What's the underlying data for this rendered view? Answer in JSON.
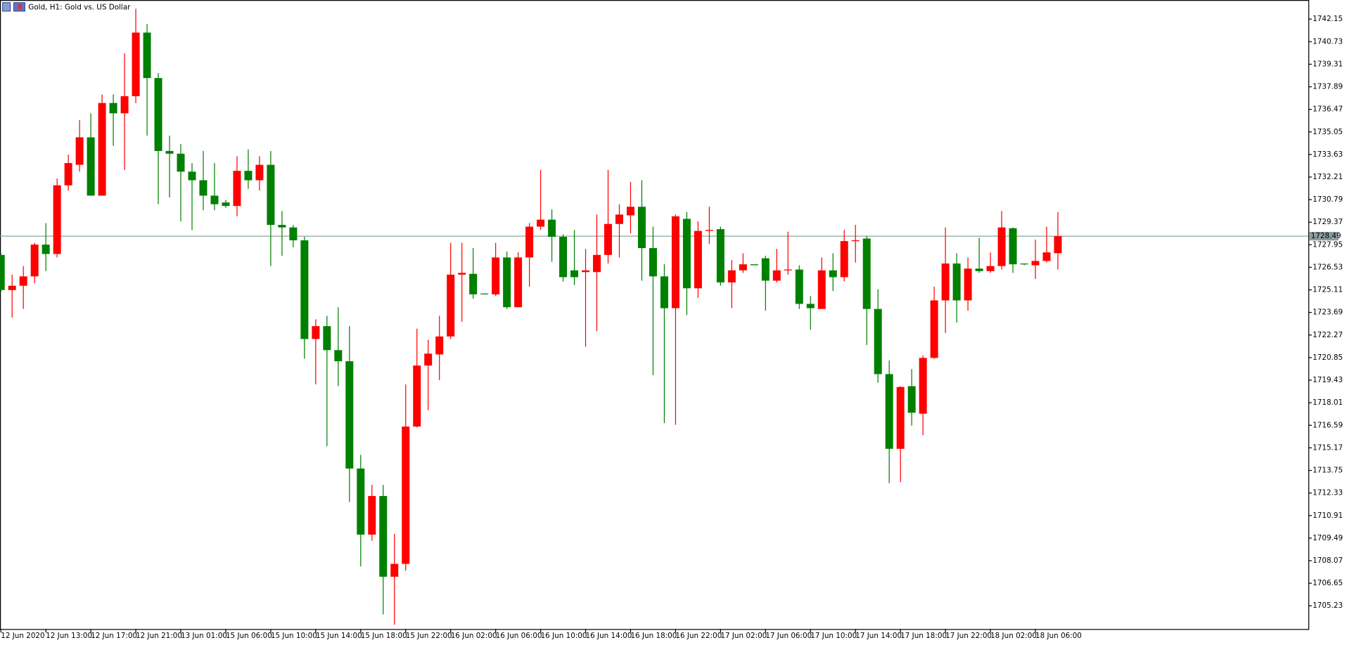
{
  "chart_data": {
    "type": "candlestick",
    "title": "Gold, H1:  Gold vs. US Dollar",
    "categories": [
      "12 Jun 2020",
      null,
      null,
      null,
      "12 Jun 13:00",
      null,
      null,
      null,
      "12 Jun 17:00",
      null,
      null,
      null,
      "12 Jun 21:00",
      null,
      null,
      null,
      "13 Jun 01:00",
      null,
      null,
      null,
      "15 Jun 06:00",
      null,
      null,
      null,
      "15 Jun 10:00",
      null,
      null,
      null,
      "15 Jun 14:00",
      null,
      null,
      null,
      "15 Jun 18:00",
      null,
      null,
      null,
      "15 Jun 22:00",
      null,
      null,
      null,
      "16 Jun 02:00",
      null,
      null,
      null,
      "16 Jun 06:00",
      null,
      null,
      null,
      "16 Jun 10:00",
      null,
      null,
      null,
      "16 Jun 14:00",
      null,
      null,
      null,
      "16 Jun 18:00",
      null,
      null,
      null,
      "16 Jun 22:00",
      null,
      null,
      null,
      "17 Jun 02:00",
      null,
      null,
      null,
      "17 Jun 06:00",
      null,
      null,
      null,
      "17 Jun 10:00",
      null,
      null,
      null,
      "17 Jun 14:00",
      null,
      null,
      null,
      "17 Jun 18:00",
      null,
      null,
      null,
      "17 Jun 22:00",
      null,
      null,
      null,
      "18 Jun 02:00",
      null,
      null,
      null,
      "18 Jun 06:00",
      null,
      null
    ],
    "open": [
      1727.31,
      1725.1,
      1725.37,
      1725.96,
      1727.96,
      1727.37,
      1731.69,
      1732.98,
      1734.71,
      1731.04,
      1736.87,
      1736.22,
      1737.3,
      1741.3,
      1738.44,
      1733.85,
      1733.68,
      1732.55,
      1732.01,
      1731.04,
      1730.61,
      1730.39,
      1732.6,
      1732.01,
      1732.98,
      1729.2,
      1729.04,
      1728.23,
      1722.02,
      1722.83,
      1721.32,
      1720.62,
      1713.87,
      1709.71,
      1712.14,
      1707.06,
      1707.87,
      1716.51,
      1720.35,
      1721.05,
      1722.18,
      1726.07,
      1726.12,
      1724.88,
      1724.83,
      1727.15,
      1724.02,
      1727.15,
      1729.09,
      1729.53,
      1728.45,
      1726.34,
      1726.23,
      1726.23,
      1727.31,
      1729.26,
      1729.8,
      1730.34,
      1727.74,
      1725.96,
      1723.96,
      1729.58,
      1725.21,
      1728.82,
      1728.93,
      1725.58,
      1726.34,
      1726.72,
      1727.1,
      1725.69,
      1726.34,
      1726.39,
      1724.23,
      1723.91,
      1726.34,
      1725.91,
      1728.18,
      1728.34,
      1723.91,
      1719.81,
      1715.11,
      1719.05,
      1717.32,
      1720.83,
      1724.45,
      1726.77,
      1724.45,
      1726.45,
      1726.29,
      1726.61,
      1728.99,
      1726.77,
      1726.66,
      1726.93,
      1727.42
    ],
    "high": [
      1727.42,
      1726.07,
      1726.61,
      1728.07,
      1729.31,
      1732.12,
      1733.63,
      1735.79,
      1736.22,
      1737.41,
      1737.41,
      1740.0,
      1742.81,
      1741.84,
      1738.76,
      1734.82,
      1734.28,
      1733.09,
      1733.85,
      1733.09,
      1730.77,
      1733.52,
      1733.95,
      1733.52,
      1733.85,
      1730.07,
      1729.2,
      1728.45,
      1723.26,
      1723.48,
      1724.02,
      1722.83,
      1714.73,
      1712.84,
      1712.84,
      1709.76,
      1719.16,
      1722.67,
      1721.97,
      1723.48,
      1728.07,
      1728.07,
      1727.74,
      1724.88,
      1728.07,
      1727.53,
      1727.47,
      1729.31,
      1732.66,
      1730.17,
      1728.61,
      1728.88,
      1727.69,
      1729.85,
      1732.66,
      1730.5,
      1731.9,
      1732.01,
      1729.09,
      1726.72,
      1729.85,
      1730.01,
      1729.42,
      1730.34,
      1729.09,
      1726.99,
      1727.42,
      1726.72,
      1727.26,
      1727.69,
      1728.77,
      1726.66,
      1724.72,
      1727.15,
      1727.42,
      1728.88,
      1729.2,
      1728.5,
      1725.15,
      1720.67,
      1719.05,
      1720.13,
      1720.99,
      1725.31,
      1729.04,
      1727.42,
      1727.15,
      1728.39,
      1727.47,
      1730.07,
      1729.04,
      1726.77,
      1728.28,
      1729.09,
      1730.01
    ],
    "low": [
      1724.99,
      1723.37,
      1723.91,
      1725.53,
      1726.29,
      1727.15,
      1731.36,
      1732.55,
      1731.04,
      1731.04,
      1734.17,
      1732.66,
      1736.87,
      1734.82,
      1730.5,
      1730.93,
      1729.42,
      1728.88,
      1730.12,
      1730.12,
      1730.28,
      1729.74,
      1731.47,
      1731.36,
      1726.61,
      1727.26,
      1727.8,
      1720.78,
      1719.16,
      1715.27,
      1719.05,
      1711.76,
      1707.71,
      1709.33,
      1704.69,
      1704.04,
      1707.44,
      1716.46,
      1717.54,
      1719.43,
      1722.02,
      1723.1,
      1724.56,
      1724.83,
      1724.72,
      1723.91,
      1724.02,
      1725.31,
      1728.88,
      1726.88,
      1725.64,
      1725.42,
      1721.53,
      1722.51,
      1726.77,
      1727.15,
      1728.66,
      1725.69,
      1719.75,
      1716.73,
      1716.62,
      1723.53,
      1724.61,
      1728.01,
      1725.37,
      1723.96,
      1726.18,
      1726.66,
      1723.8,
      1725.58,
      1726.07,
      1723.91,
      1722.61,
      1723.91,
      1725.04,
      1725.64,
      1726.83,
      1721.64,
      1719.27,
      1712.95,
      1713.0,
      1716.57,
      1715.97,
      1720.78,
      1722.4,
      1723.05,
      1723.8,
      1726.18,
      1726.18,
      1726.39,
      1726.18,
      1726.66,
      1725.8,
      1726.83,
      1726.39
    ],
    "close": [
      1725.1,
      1725.37,
      1725.96,
      1727.96,
      1727.37,
      1731.69,
      1733.09,
      1734.71,
      1731.04,
      1736.87,
      1736.22,
      1737.3,
      1741.3,
      1738.44,
      1733.85,
      1733.68,
      1732.55,
      1732.01,
      1731.04,
      1730.5,
      1730.39,
      1732.6,
      1732.01,
      1732.98,
      1729.2,
      1729.04,
      1728.23,
      1722.02,
      1722.83,
      1721.32,
      1720.62,
      1713.87,
      1709.71,
      1712.14,
      1707.06,
      1707.87,
      1716.51,
      1720.35,
      1721.1,
      1722.18,
      1726.07,
      1726.18,
      1724.83,
      1724.83,
      1727.15,
      1724.02,
      1727.15,
      1729.09,
      1729.53,
      1728.45,
      1725.91,
      1725.91,
      1726.34,
      1727.31,
      1729.26,
      1729.85,
      1730.34,
      1727.74,
      1725.96,
      1723.96,
      1729.74,
      1725.21,
      1728.82,
      1728.88,
      1725.58,
      1726.34,
      1726.72,
      1726.66,
      1725.69,
      1726.34,
      1726.39,
      1724.23,
      1723.96,
      1726.34,
      1725.91,
      1728.18,
      1728.23,
      1723.91,
      1719.81,
      1715.11,
      1719.0,
      1717.38,
      1720.83,
      1724.45,
      1726.77,
      1724.45,
      1726.45,
      1726.29,
      1726.61,
      1729.04,
      1726.72,
      1726.72,
      1726.93,
      1727.47,
      1728.49
    ],
    "up_color": "#ff0000",
    "down_color": "#008000",
    "ylim": [
      1703.77,
      1743.35
    ],
    "yticks": [
      1742.15,
      1740.73,
      1739.31,
      1737.89,
      1736.47,
      1735.05,
      1733.63,
      1732.21,
      1730.79,
      1729.37,
      1727.95,
      1726.53,
      1725.11,
      1723.69,
      1722.27,
      1720.85,
      1719.43,
      1718.01,
      1716.59,
      1715.17,
      1713.75,
      1712.33,
      1710.91,
      1709.49,
      1708.07,
      1706.65,
      1705.23
    ],
    "current_price": 1728.49,
    "current_price_color": "#8aa898"
  }
}
